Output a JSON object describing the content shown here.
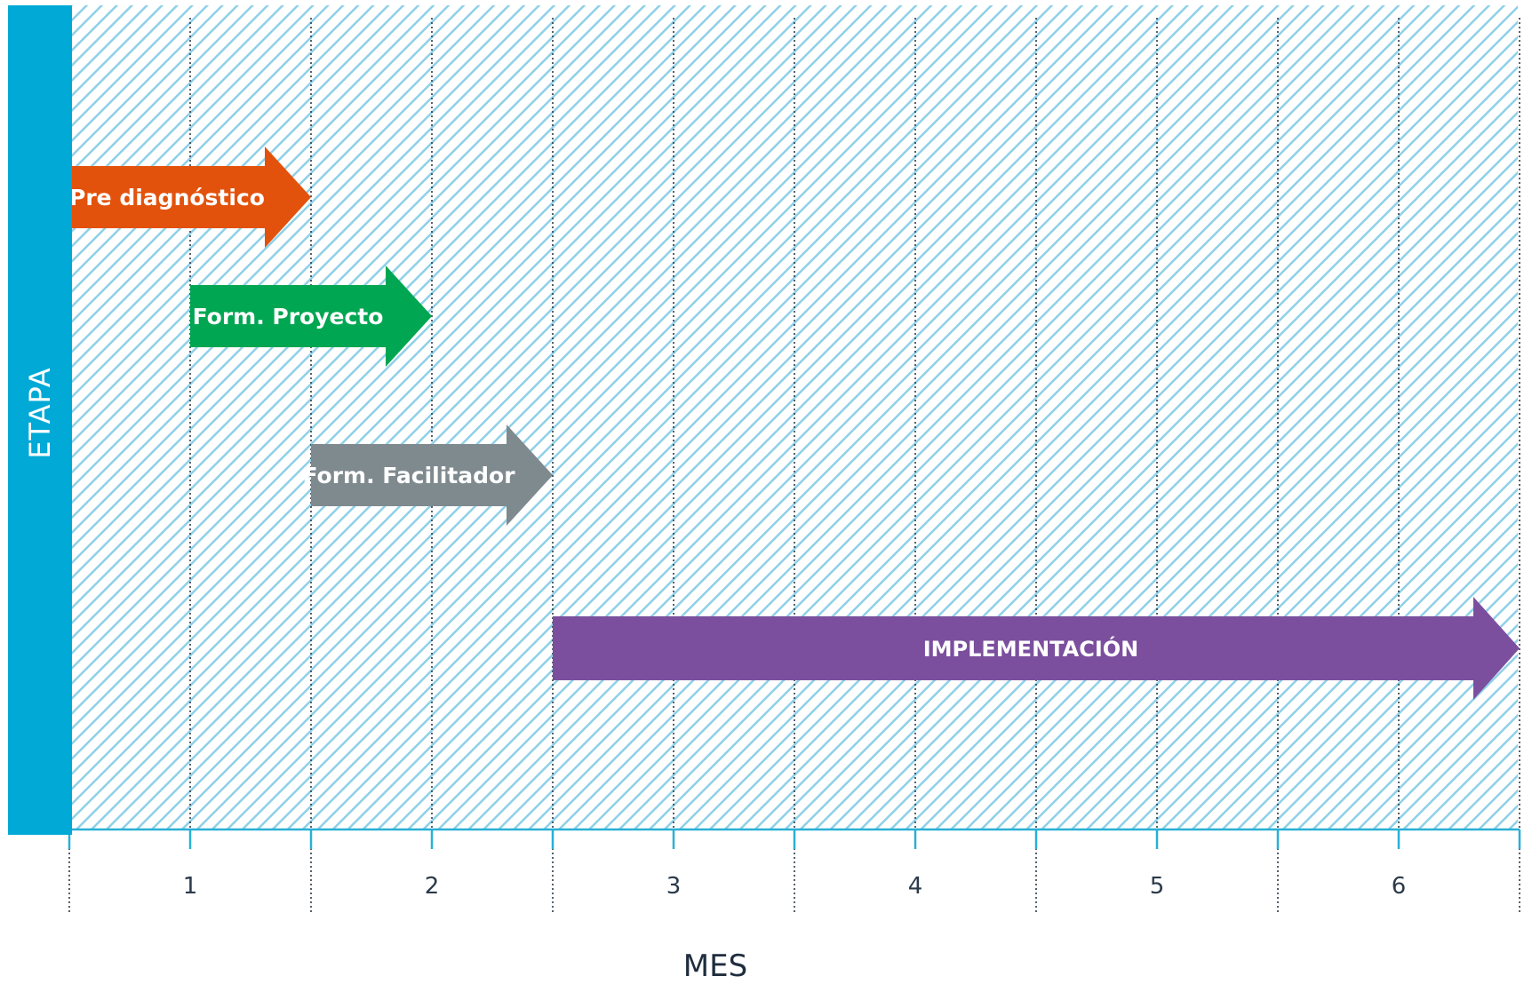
{
  "y_axis_title": "ETAPA",
  "x_axis_title": "MES",
  "months": [
    "1",
    "2",
    "3",
    "4",
    "5",
    "6"
  ],
  "colors": {
    "sidebar": "#00a9d6",
    "hatch": "#7ecbe6",
    "axis": "#29b0d6",
    "pre": "#e2520c",
    "proyecto": "#00a651",
    "facilitador": "#7f8a8f",
    "implementacion": "#7b4f9e"
  },
  "stages": [
    {
      "label": "Pre diagnóstico",
      "start": 0,
      "end": 1.0,
      "color": "#e2520c",
      "icon": "arrow-right"
    },
    {
      "label": "Form. Proyecto",
      "start": 0.5,
      "end": 1.5,
      "color": "#00a651",
      "icon": "arrow-right"
    },
    {
      "label": "Form. Facilitador",
      "start": 1.0,
      "end": 2.0,
      "color": "#7f8a8f",
      "icon": "arrow-right"
    },
    {
      "label": "IMPLEMENTACIÓN",
      "start": 2.0,
      "end": 6.0,
      "color": "#7b4f9e",
      "icon": "arrow-right"
    }
  ]
}
